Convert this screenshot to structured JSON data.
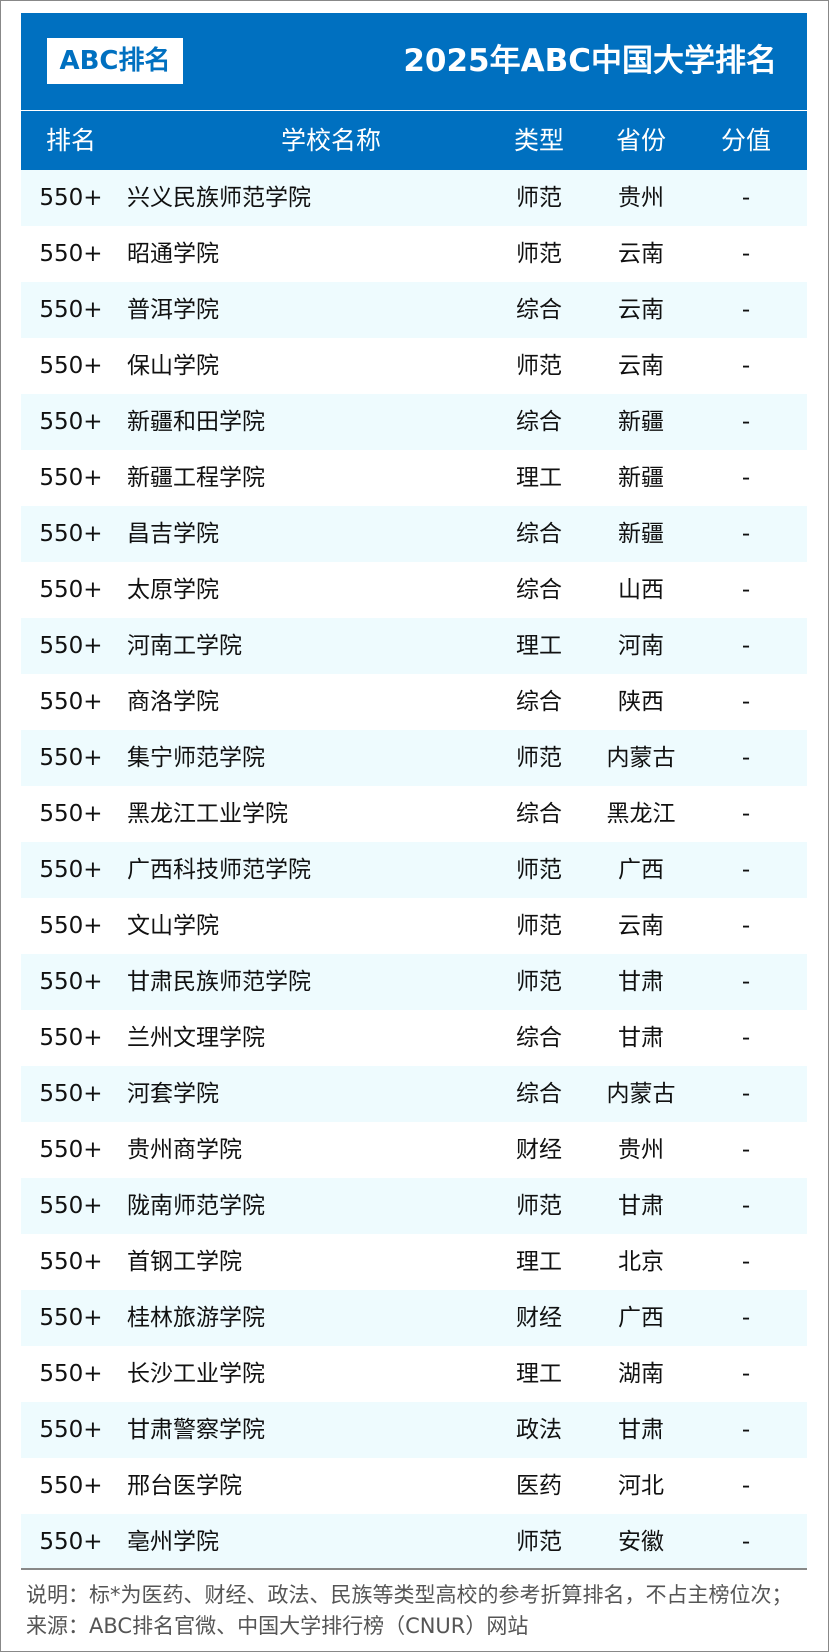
{
  "header": {
    "logo": "ABC排名",
    "title": "2025年ABC中国大学排名"
  },
  "columns": [
    "排名",
    "学校名称",
    "类型",
    "省份",
    "分值"
  ],
  "rows": [
    [
      "550+",
      "兴义民族师范学院",
      "师范",
      "贵州",
      "-"
    ],
    [
      "550+",
      "昭通学院",
      "师范",
      "云南",
      "-"
    ],
    [
      "550+",
      "普洱学院",
      "综合",
      "云南",
      "-"
    ],
    [
      "550+",
      "保山学院",
      "师范",
      "云南",
      "-"
    ],
    [
      "550+",
      "新疆和田学院",
      "综合",
      "新疆",
      "-"
    ],
    [
      "550+",
      "新疆工程学院",
      "理工",
      "新疆",
      "-"
    ],
    [
      "550+",
      "昌吉学院",
      "综合",
      "新疆",
      "-"
    ],
    [
      "550+",
      "太原学院",
      "综合",
      "山西",
      "-"
    ],
    [
      "550+",
      "河南工学院",
      "理工",
      "河南",
      "-"
    ],
    [
      "550+",
      "商洛学院",
      "综合",
      "陕西",
      "-"
    ],
    [
      "550+",
      "集宁师范学院",
      "师范",
      "内蒙古",
      "-"
    ],
    [
      "550+",
      "黑龙江工业学院",
      "综合",
      "黑龙江",
      "-"
    ],
    [
      "550+",
      "广西科技师范学院",
      "师范",
      "广西",
      "-"
    ],
    [
      "550+",
      "文山学院",
      "师范",
      "云南",
      "-"
    ],
    [
      "550+",
      "甘肃民族师范学院",
      "师范",
      "甘肃",
      "-"
    ],
    [
      "550+",
      "兰州文理学院",
      "综合",
      "甘肃",
      "-"
    ],
    [
      "550+",
      "河套学院",
      "综合",
      "内蒙古",
      "-"
    ],
    [
      "550+",
      "贵州商学院",
      "财经",
      "贵州",
      "-"
    ],
    [
      "550+",
      "陇南师范学院",
      "师范",
      "甘肃",
      "-"
    ],
    [
      "550+",
      "首钢工学院",
      "理工",
      "北京",
      "-"
    ],
    [
      "550+",
      "桂林旅游学院",
      "财经",
      "广西",
      "-"
    ],
    [
      "550+",
      "长沙工业学院",
      "理工",
      "湖南",
      "-"
    ],
    [
      "550+",
      "甘肃警察学院",
      "政法",
      "甘肃",
      "-"
    ],
    [
      "550+",
      "邢台医学院",
      "医药",
      "河北",
      "-"
    ],
    [
      "550+",
      "亳州学院",
      "师范",
      "安徽",
      "-"
    ]
  ],
  "footer": {
    "note": "说明：标*为医药、财经、政法、民族等类型高校的参考折算排名，不占主榜位次；来源：ABC排名官微、中国大学排行榜（CNUR）网站"
  },
  "colors": {
    "brand": "#0070c0",
    "row_alt": "#eefbfe"
  }
}
